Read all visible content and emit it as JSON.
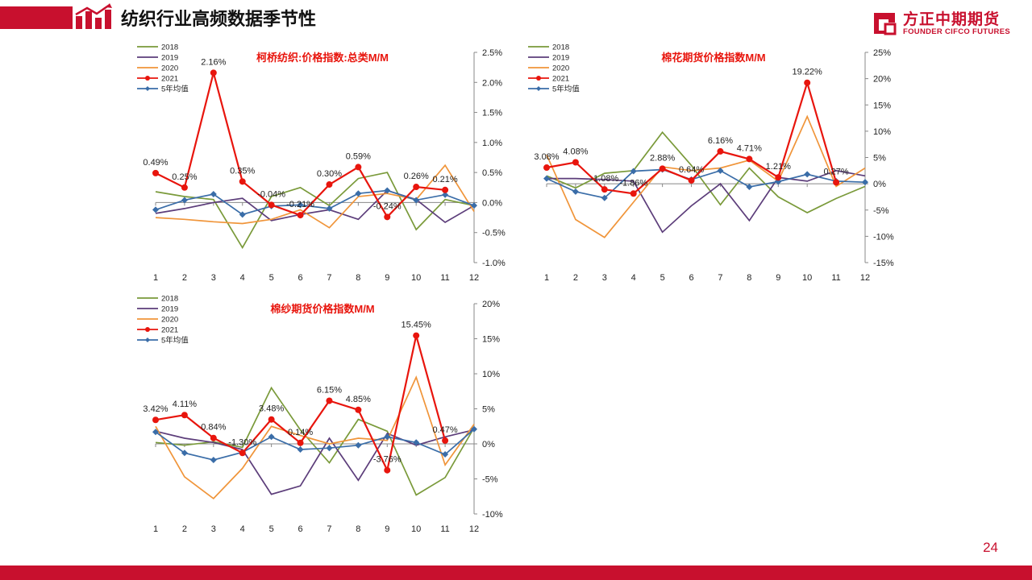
{
  "header": {
    "title": "纺织行业高频数据季节性"
  },
  "logo": {
    "name": "方正中期期货",
    "subtitle": "FOUNDER CIFCO FUTURES"
  },
  "page_number": "24",
  "colors": {
    "brand": "#c8102e",
    "s2018": "#7a9a3a",
    "s2019": "#5c3d7a",
    "s2020": "#f0953a",
    "s2021": "#e8150d",
    "avg": "#3a6da8"
  },
  "chart_data": [
    {
      "type": "line",
      "title": "柯桥纺织:价格指数:总类M/M",
      "categories": [
        "1",
        "2",
        "3",
        "4",
        "5",
        "6",
        "7",
        "8",
        "9",
        "10",
        "11",
        "12"
      ],
      "yticks": [
        "2.5%",
        "2.0%",
        "1.5%",
        "1.0%",
        "0.5%",
        "0.0%",
        "-0.5%",
        "-1.0%"
      ],
      "ylim": [
        -1.0,
        2.5
      ],
      "legend": [
        "2018",
        "2019",
        "2020",
        "2021",
        "5年均值"
      ],
      "legend_position": "top-left",
      "series": [
        {
          "name": "2018",
          "values": [
            0.18,
            0.1,
            0.05,
            -0.75,
            0.1,
            0.25,
            -0.05,
            0.4,
            0.5,
            -0.45,
            0.05,
            -0.05
          ]
        },
        {
          "name": "2019",
          "values": [
            -0.18,
            -0.1,
            0.0,
            0.07,
            -0.3,
            -0.2,
            -0.12,
            -0.28,
            0.2,
            0.05,
            -0.33,
            -0.05
          ]
        },
        {
          "name": "2020",
          "values": [
            -0.25,
            -0.28,
            -0.32,
            -0.35,
            -0.28,
            -0.12,
            -0.42,
            0.1,
            0.15,
            0.05,
            0.62,
            -0.15
          ]
        },
        {
          "name": "2021",
          "values": [
            0.49,
            0.25,
            2.16,
            0.35,
            -0.04,
            -0.21,
            0.3,
            0.59,
            -0.24,
            0.26,
            0.21,
            null
          ],
          "labels": [
            "0.49%",
            "0.25%",
            "2.16%",
            "0.35%",
            "-0.04%",
            "-0.21%",
            "0.30%",
            "0.59%",
            "-0.24%",
            "0.26%",
            "0.21%",
            ""
          ]
        },
        {
          "name": "5年均值",
          "values": [
            -0.12,
            0.04,
            0.14,
            -0.2,
            -0.06,
            -0.04,
            -0.1,
            0.15,
            0.2,
            0.04,
            0.13,
            -0.05
          ]
        }
      ]
    },
    {
      "type": "line",
      "title": "棉花期货价格指数M/M",
      "categories": [
        "1",
        "2",
        "3",
        "4",
        "5",
        "6",
        "7",
        "8",
        "9",
        "10",
        "11",
        "12"
      ],
      "yticks": [
        "25%",
        "20%",
        "15%",
        "10%",
        "5%",
        "0%",
        "-5%",
        "-10%",
        "-15%"
      ],
      "ylim": [
        -15,
        25
      ],
      "legend": [
        "2018",
        "2019",
        "2020",
        "2021",
        "5年均值"
      ],
      "legend_position": "top-left",
      "series": [
        {
          "name": "2018",
          "values": [
            1.5,
            -0.8,
            2.0,
            2.5,
            9.8,
            3.5,
            -4.0,
            3.0,
            -2.5,
            -5.5,
            -2.8,
            -0.5
          ]
        },
        {
          "name": "2019",
          "values": [
            1.0,
            1.0,
            0.8,
            0.5,
            -9.2,
            -4.2,
            0.0,
            -7.0,
            1.2,
            0.5,
            2.5,
            1.5
          ]
        },
        {
          "name": "2020",
          "values": [
            5.5,
            -6.8,
            -10.2,
            -3.5,
            3.2,
            2.5,
            3.0,
            4.5,
            0.5,
            12.8,
            -0.5,
            3.0
          ]
        },
        {
          "name": "2021",
          "values": [
            3.08,
            4.08,
            -1.08,
            -1.86,
            2.88,
            0.64,
            6.16,
            4.71,
            1.21,
            19.22,
            0.27,
            null
          ],
          "labels": [
            "3.08%",
            "4.08%",
            "-1.08%",
            "-1.86%",
            "2.88%",
            "0.64%",
            "6.16%",
            "4.71%",
            "1.21%",
            "19.22%",
            "0.27%",
            ""
          ]
        },
        {
          "name": "5年均值",
          "values": [
            1.0,
            -1.5,
            -2.7,
            2.4,
            2.7,
            0.8,
            2.5,
            -0.6,
            0.4,
            1.8,
            0.5,
            0.3
          ]
        }
      ]
    },
    {
      "type": "line",
      "title": "棉纱期货价格指数M/M",
      "categories": [
        "1",
        "2",
        "3",
        "4",
        "5",
        "6",
        "7",
        "8",
        "9",
        "10",
        "11",
        "12"
      ],
      "yticks": [
        "20%",
        "15%",
        "10%",
        "5%",
        "0%",
        "-5%",
        "-10%"
      ],
      "ylim": [
        -10,
        20
      ],
      "legend": [
        "2018",
        "2019",
        "2020",
        "2021",
        "5年均值"
      ],
      "legend_position": "top-left",
      "series": [
        {
          "name": "2018",
          "values": [
            0.2,
            -0.2,
            0.3,
            -0.5,
            8.0,
            2.0,
            -2.7,
            3.5,
            1.8,
            -7.3,
            -4.8,
            2.3
          ]
        },
        {
          "name": "2019",
          "values": [
            1.8,
            0.8,
            0.2,
            -0.8,
            -7.2,
            -6.0,
            0.8,
            -5.2,
            1.5,
            -0.2,
            1.0,
            2.0
          ]
        },
        {
          "name": "2020",
          "values": [
            2.5,
            -4.7,
            -7.8,
            -3.5,
            2.5,
            1.2,
            0.0,
            0.8,
            0.5,
            9.5,
            -3.0,
            2.8
          ]
        },
        {
          "name": "2021",
          "values": [
            3.42,
            4.11,
            0.84,
            -1.3,
            3.48,
            0.14,
            6.15,
            4.85,
            -3.76,
            15.45,
            0.47,
            null
          ],
          "labels": [
            "3.42%",
            "4.11%",
            "0.84%",
            "-1.30%",
            "3.48%",
            "0.14%",
            "6.15%",
            "4.85%",
            "-3.76%",
            "15.45%",
            "0.47%",
            ""
          ]
        },
        {
          "name": "5年均值",
          "values": [
            1.7,
            -1.3,
            -2.3,
            -1.2,
            1.0,
            -0.8,
            -0.6,
            -0.2,
            1.0,
            0.2,
            -1.5,
            2.1
          ]
        }
      ]
    }
  ]
}
